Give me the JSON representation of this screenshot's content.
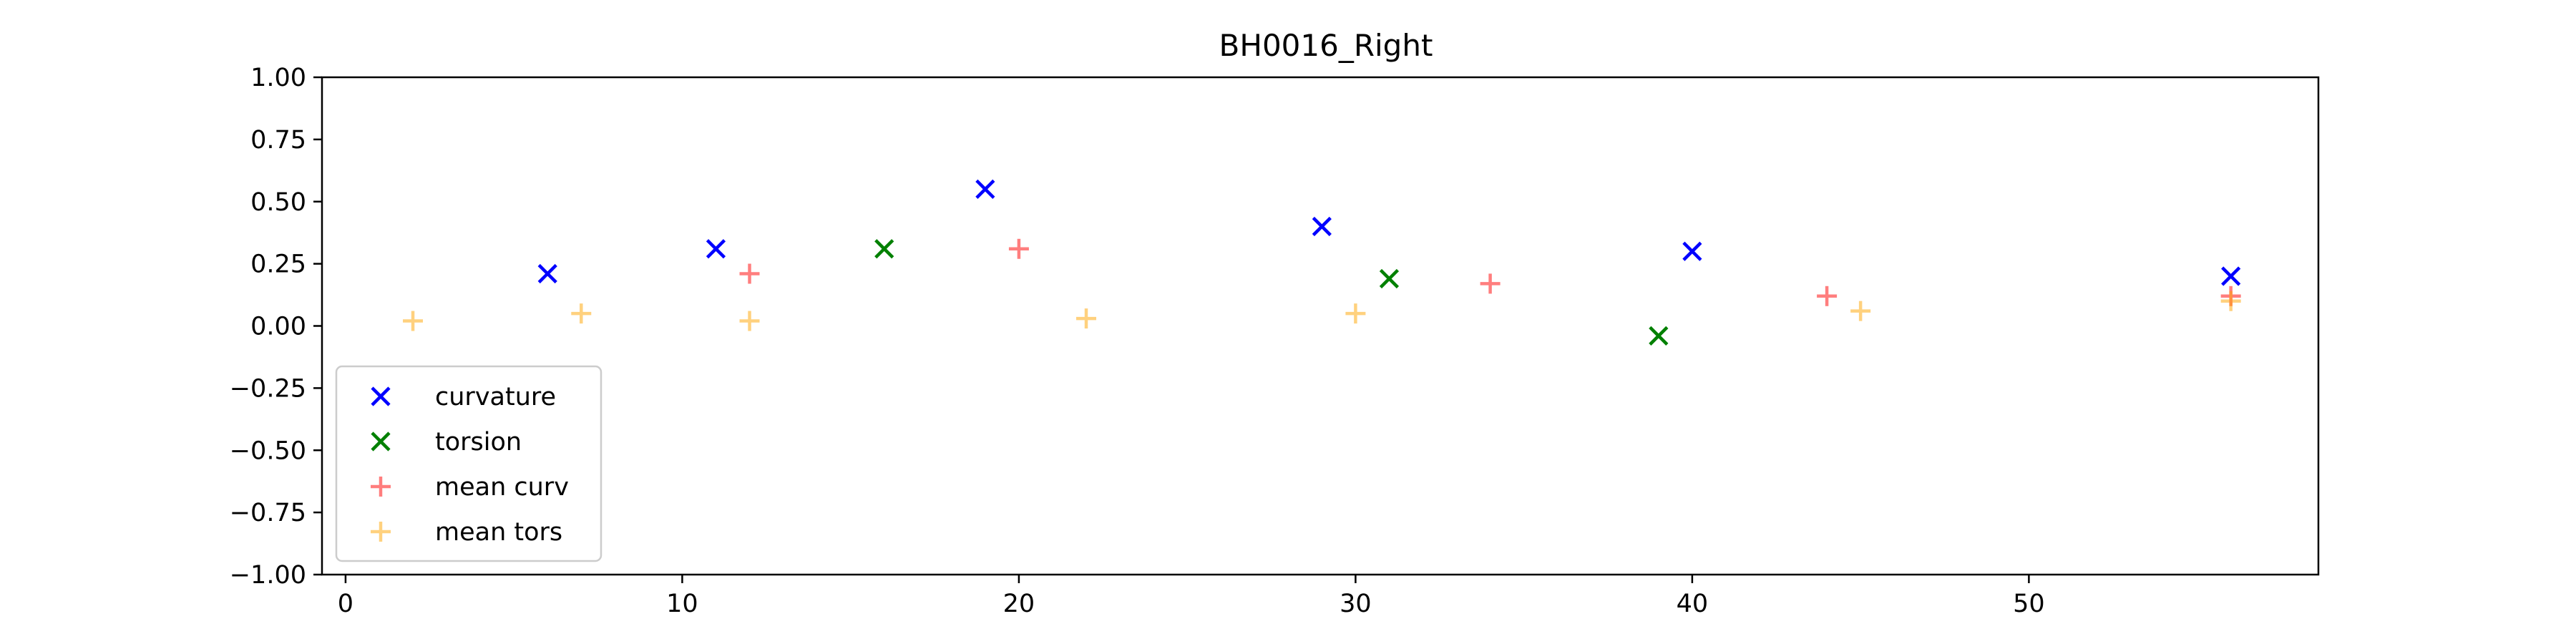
{
  "chart_data": {
    "type": "scatter",
    "title": "BH0016_Right",
    "xlabel": "",
    "ylabel": "",
    "xlim": [
      -0.7,
      58.6
    ],
    "ylim": [
      -1.0,
      1.0
    ],
    "xticks": [
      0,
      10,
      20,
      30,
      40,
      50
    ],
    "xtick_labels": [
      "0",
      "10",
      "20",
      "30",
      "40",
      "50"
    ],
    "yticks": [
      -1.0,
      -0.75,
      -0.5,
      -0.25,
      0.0,
      0.25,
      0.5,
      0.75,
      1.0
    ],
    "ytick_labels": [
      "−1.00",
      "−0.75",
      "−0.50",
      "−0.25",
      "0.00",
      "0.25",
      "0.50",
      "0.75",
      "1.00"
    ],
    "grid": false,
    "legend_position": "lower-left",
    "series": [
      {
        "name": "curvature",
        "marker": "x",
        "color": "#0000ff",
        "opacity": 1.0,
        "points": [
          [
            6,
            0.21
          ],
          [
            11,
            0.31
          ],
          [
            19,
            0.55
          ],
          [
            29,
            0.4
          ],
          [
            40,
            0.3
          ],
          [
            56,
            0.2
          ]
        ]
      },
      {
        "name": "torsion",
        "marker": "x",
        "color": "#008000",
        "opacity": 1.0,
        "points": [
          [
            16,
            0.31
          ],
          [
            31,
            0.19
          ],
          [
            39,
            -0.04
          ]
        ]
      },
      {
        "name": "mean curv",
        "marker": "+",
        "color": "#ff0000",
        "opacity": 0.5,
        "points": [
          [
            12,
            0.21
          ],
          [
            20,
            0.31
          ],
          [
            34,
            0.17
          ],
          [
            44,
            0.12
          ],
          [
            56,
            0.12
          ]
        ]
      },
      {
        "name": "mean tors",
        "marker": "+",
        "color": "#ffa500",
        "opacity": 0.5,
        "points": [
          [
            2,
            0.02
          ],
          [
            7,
            0.05
          ],
          [
            12,
            0.02
          ],
          [
            22,
            0.03
          ],
          [
            30,
            0.05
          ],
          [
            45,
            0.06
          ],
          [
            56,
            0.1
          ]
        ]
      }
    ]
  }
}
